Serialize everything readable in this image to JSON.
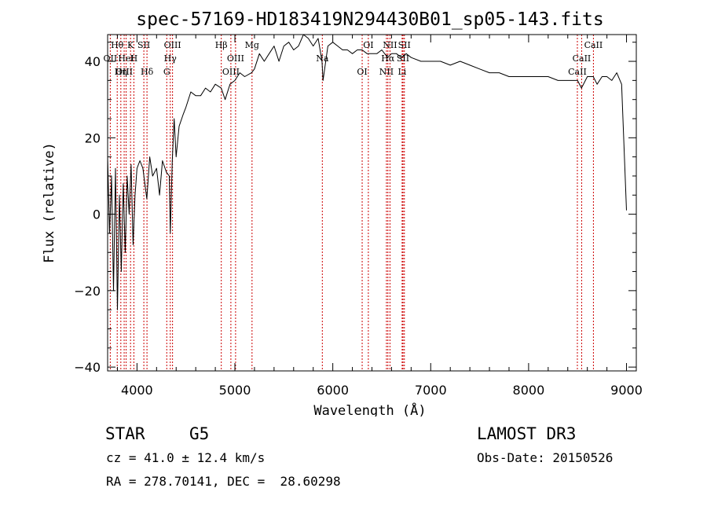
{
  "chart_data": {
    "type": "line",
    "title": "spec-57169-HD183419N294430B01_sp05-143.fits",
    "xlabel": "Wavelength (Å)",
    "ylabel": "Flux (relative)",
    "xlim": [
      3700,
      9100
    ],
    "ylim": [
      -41,
      47
    ],
    "xticks": [
      4000,
      5000,
      6000,
      7000,
      8000,
      9000
    ],
    "yticks": [
      -40,
      -20,
      0,
      20,
      40
    ],
    "xtick_labels": [
      "4000",
      "5000",
      "6000",
      "7000",
      "8000",
      "9000"
    ],
    "ytick_labels": [
      "−40",
      "−20",
      "0",
      "20",
      "40"
    ],
    "series": [
      {
        "name": "flux",
        "x": [
          3700,
          3720,
          3740,
          3760,
          3780,
          3800,
          3820,
          3840,
          3860,
          3880,
          3900,
          3920,
          3940,
          3960,
          3980,
          4000,
          4030,
          4060,
          4100,
          4130,
          4160,
          4200,
          4230,
          4260,
          4300,
          4330,
          4340,
          4360,
          4380,
          4400,
          4430,
          4470,
          4500,
          4550,
          4600,
          4650,
          4700,
          4750,
          4800,
          4860,
          4900,
          4950,
          5000,
          5050,
          5100,
          5170,
          5200,
          5250,
          5300,
          5350,
          5400,
          5450,
          5500,
          5550,
          5600,
          5650,
          5700,
          5750,
          5800,
          5850,
          5890,
          5900,
          5950,
          6000,
          6050,
          6100,
          6150,
          6200,
          6250,
          6300,
          6350,
          6400,
          6450,
          6500,
          6560,
          6600,
          6650,
          6700,
          6750,
          6800,
          6900,
          7000,
          7100,
          7200,
          7300,
          7400,
          7500,
          7600,
          7700,
          7800,
          7900,
          8000,
          8100,
          8200,
          8300,
          8400,
          8500,
          8540,
          8600,
          8660,
          8700,
          8750,
          8800,
          8850,
          8900,
          8950,
          9000
        ],
        "y": [
          15,
          -5,
          10,
          -20,
          12,
          -25,
          5,
          -15,
          8,
          -10,
          10,
          0,
          13,
          -8,
          5,
          12,
          14,
          12,
          4,
          15,
          10,
          12,
          5,
          14,
          11,
          10,
          -5,
          14,
          25,
          15,
          23,
          26,
          28,
          32,
          31,
          31,
          33,
          32,
          34,
          33,
          30,
          34,
          35,
          37,
          36,
          37,
          38,
          42,
          40,
          42,
          44,
          40,
          44,
          45,
          43,
          44,
          47,
          46,
          44,
          46,
          40,
          35,
          44,
          45,
          44,
          43,
          43,
          42,
          43,
          43,
          42,
          42,
          42,
          43,
          41,
          42,
          42,
          41,
          42,
          41,
          40,
          40,
          40,
          39,
          40,
          39,
          38,
          37,
          37,
          36,
          36,
          36,
          36,
          36,
          35,
          35,
          35,
          33,
          36,
          36,
          34,
          36,
          36,
          35,
          37,
          34,
          1
        ]
      }
    ],
    "spectral_lines": [
      {
        "label": "Hθ",
        "wavelength": 3798
      },
      {
        "label": "OII",
        "wavelength": 3727
      },
      {
        "label": "OIII",
        "wavelength": 3869
      },
      {
        "label": "K",
        "wavelength": 3934
      },
      {
        "label": "HeI",
        "wavelength": 3889
      },
      {
        "label": "Hη",
        "wavelength": 3835
      },
      {
        "label": "SII",
        "wavelength": 4070
      },
      {
        "label": "H",
        "wavelength": 3968
      },
      {
        "label": "Hδ",
        "wavelength": 4102
      },
      {
        "label": "OIII",
        "wavelength": 4363
      },
      {
        "label": "Hγ",
        "wavelength": 4340
      },
      {
        "label": "G",
        "wavelength": 4304
      },
      {
        "label": "Hβ",
        "wavelength": 4861
      },
      {
        "label": "OIII",
        "wavelength": 5007
      },
      {
        "label": "OIII",
        "wavelength": 4959
      },
      {
        "label": "Mg",
        "wavelength": 5175
      },
      {
        "label": "Na",
        "wavelength": 5893
      },
      {
        "label": "OI",
        "wavelength": 6300
      },
      {
        "label": "OI",
        "wavelength": 6363
      },
      {
        "label": "Hα",
        "wavelength": 6563
      },
      {
        "label": "NII",
        "wavelength": 6548
      },
      {
        "label": "NII",
        "wavelength": 6584
      },
      {
        "label": "SII",
        "wavelength": 6717
      },
      {
        "label": "Li",
        "wavelength": 6708
      },
      {
        "label": "SII",
        "wavelength": 6731
      },
      {
        "label": "CaII",
        "wavelength": 8542
      },
      {
        "label": "CaII",
        "wavelength": 8498
      },
      {
        "label": "CaII",
        "wavelength": 8662
      }
    ]
  },
  "info": {
    "object_class": "STAR",
    "subclass": "G5",
    "survey": "LAMOST DR3",
    "cz": "cz = 41.0 ± 12.4 km/s",
    "obs_date": "Obs-Date: 20150526",
    "coords": "RA = 278.70141, DEC =  28.60298"
  },
  "colors": {
    "spectrum": "#000000",
    "line_markers": "#cc0000",
    "axes": "#000000"
  }
}
